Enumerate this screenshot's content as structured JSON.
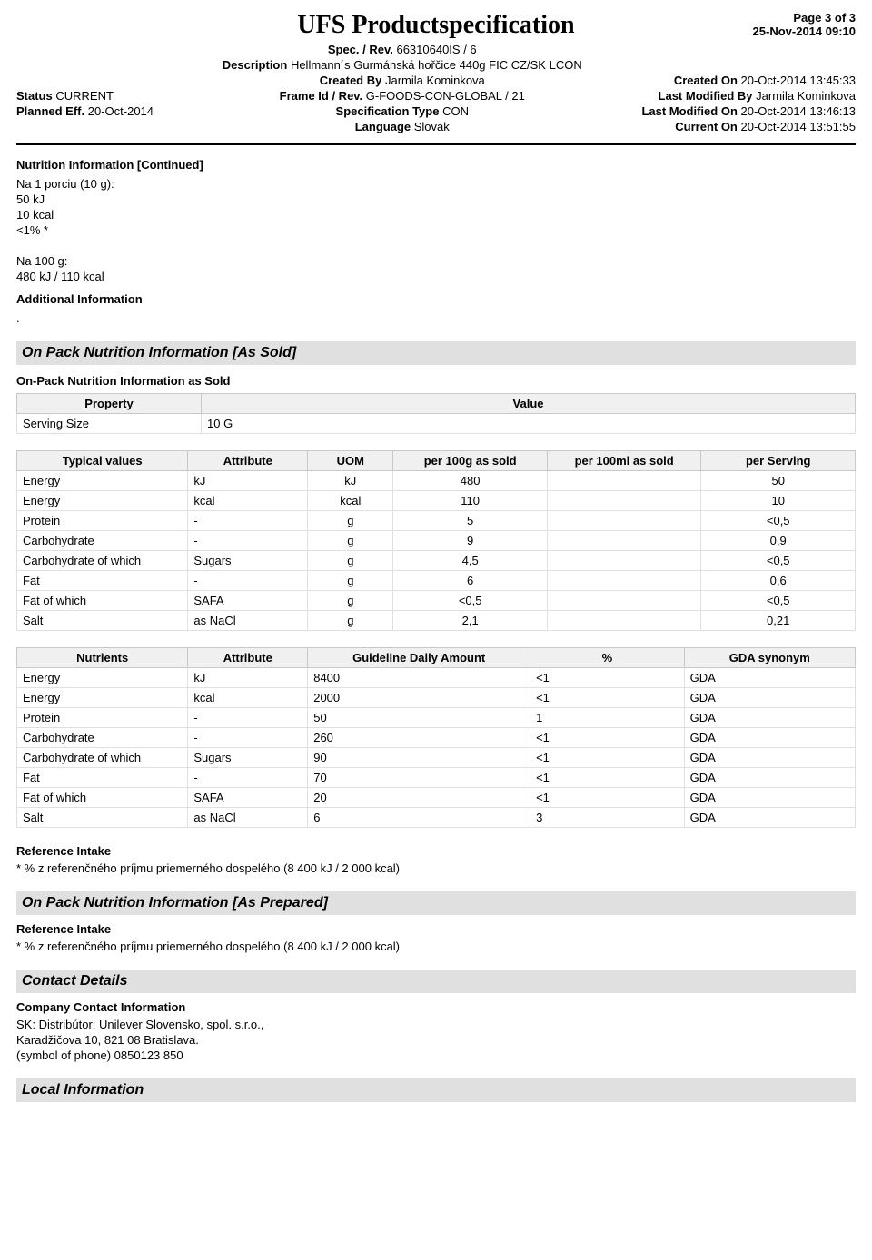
{
  "header": {
    "title": "UFS Productspecification",
    "page": "Page 3 of 3",
    "datetime": "25-Nov-2014 09:10",
    "spec_rev_label": "Spec. / Rev.",
    "spec_rev_value": "66310640IS  /  6",
    "description_label": "Description",
    "description_value": "Hellmann´s Gurmánská hořčice 440g FIC CZ/SK LCON",
    "status_label": "Status",
    "status_value": "CURRENT",
    "planned_eff_label": "Planned Eff.",
    "planned_eff_value": "20-Oct-2014",
    "created_by_label": "Created By",
    "created_by_value": "Jarmila Kominkova",
    "frame_id_label": "Frame Id / Rev.",
    "frame_id_value": "G-FOODS-CON-GLOBAL  /  21",
    "spec_type_label": "Specification Type",
    "spec_type_value": "CON",
    "language_label": "Language",
    "language_value": "Slovak",
    "created_on_label": "Created On",
    "created_on_value": "20-Oct-2014 13:45:33",
    "last_mod_by_label": "Last Modified By",
    "last_mod_by_value": "Jarmila Kominkova",
    "last_mod_on_label": "Last Modified On",
    "last_mod_on_value": "20-Oct-2014 13:46:13",
    "current_on_label": "Current On",
    "current_on_value": "20-Oct-2014 13:51:55"
  },
  "nutrition_cont": {
    "heading": "Nutrition Information [Continued]",
    "lines": [
      "Na 1 porciu (10 g):",
      "50 kJ",
      "10 kcal",
      "<1% *",
      "",
      "Na 100 g:",
      "480 kJ / 110 kcal"
    ],
    "additional_heading": "Additional Information",
    "additional_text": "."
  },
  "as_sold": {
    "banner": "On Pack Nutrition Information  [As Sold]",
    "subheading": "On-Pack Nutrition Information as Sold",
    "serving_table": {
      "columns": [
        "Property",
        "Value"
      ],
      "row": [
        "Serving Size",
        "10 G"
      ]
    },
    "typical_table": {
      "columns": [
        "Typical values",
        "Attribute",
        "UOM",
        "per 100g as sold",
        "per 100ml as sold",
        "per Serving"
      ],
      "rows": [
        [
          "Energy",
          "kJ",
          "kJ",
          "480",
          "",
          "50"
        ],
        [
          "Energy",
          "kcal",
          "kcal",
          "110",
          "",
          "10"
        ],
        [
          "Protein",
          "-",
          "g",
          "5",
          "",
          "<0,5"
        ],
        [
          "Carbohydrate",
          "-",
          "g",
          "9",
          "",
          "0,9"
        ],
        [
          "Carbohydrate of which",
          "Sugars",
          "g",
          "4,5",
          "",
          "<0,5"
        ],
        [
          "Fat",
          "-",
          "g",
          "6",
          "",
          "0,6"
        ],
        [
          "Fat of which",
          "SAFA",
          "g",
          "<0,5",
          "",
          "<0,5"
        ],
        [
          "Salt",
          "as NaCl",
          "g",
          "2,1",
          "",
          "0,21"
        ]
      ]
    },
    "gda_table": {
      "columns": [
        "Nutrients",
        "Attribute",
        "Guideline Daily Amount",
        "%",
        "GDA synonym"
      ],
      "rows": [
        [
          "Energy",
          "kJ",
          "8400",
          "<1",
          "GDA"
        ],
        [
          "Energy",
          "kcal",
          "2000",
          "<1",
          "GDA"
        ],
        [
          "Protein",
          "-",
          "50",
          "1",
          "GDA"
        ],
        [
          "Carbohydrate",
          "-",
          "260",
          "<1",
          "GDA"
        ],
        [
          "Carbohydrate of which",
          "Sugars",
          "90",
          "<1",
          "GDA"
        ],
        [
          "Fat",
          "-",
          "70",
          "<1",
          "GDA"
        ],
        [
          "Fat of which",
          "SAFA",
          "20",
          "<1",
          "GDA"
        ],
        [
          "Salt",
          "as NaCl",
          "6",
          "3",
          "GDA"
        ]
      ]
    },
    "ref_intake_heading": "Reference Intake",
    "ref_intake_text": "* % z referenčného príjmu priemerného dospelého (8 400 kJ / 2 000 kcal)"
  },
  "as_prepared": {
    "banner": "On Pack Nutrition Information  [As Prepared]",
    "ref_intake_heading": "Reference Intake",
    "ref_intake_text": "* % z referenčného príjmu priemerného dospelého (8 400 kJ / 2 000 kcal)"
  },
  "contact": {
    "banner": "Contact Details",
    "subheading": "Company Contact Information",
    "lines": [
      "SK: Distribútor: Unilever Slovensko, spol. s.r.o.,",
      "Karadžičova 10, 821 08 Bratislava.",
      "(symbol of phone) 0850123 850"
    ]
  },
  "local": {
    "banner": "Local Information"
  }
}
